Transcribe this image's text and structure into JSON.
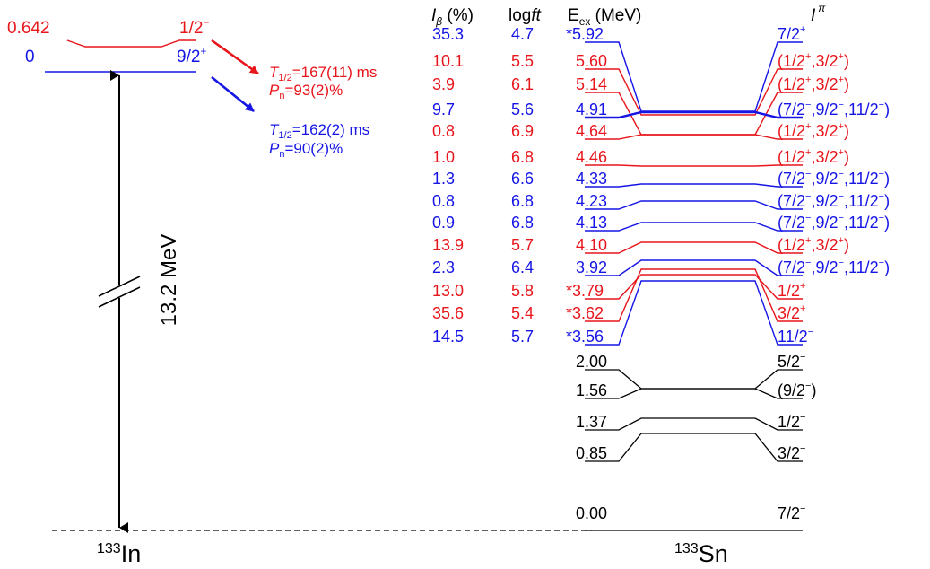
{
  "colors": {
    "red": "#e8151b",
    "blue": "#1515e6",
    "black": "#000000"
  },
  "parent": {
    "nucleus_mass": "133",
    "nucleus_symbol": "In",
    "isomer": {
      "energy": "0.642",
      "spin": "1/2",
      "parity": "−",
      "half_life_label": "T",
      "half_life_sub": "1/2",
      "half_life_value": "=167(11) ms",
      "pn_label": "P",
      "pn_sub": "n",
      "pn_value": "=93(2)%"
    },
    "ground": {
      "energy": "0",
      "spin": "9/2",
      "parity": "+",
      "half_life_label": "T",
      "half_life_sub": "1/2",
      "half_life_value": "=162(2) ms",
      "pn_label": "P",
      "pn_sub": "n",
      "pn_value": "=90(2)%"
    },
    "q_value": "13.2 MeV"
  },
  "daughter": {
    "nucleus_mass": "133",
    "nucleus_symbol": "Sn"
  },
  "headers": {
    "ib_label": "I",
    "ib_sub": "β",
    "ib_unit": " (%)",
    "logft_prefix": "log",
    "logft_italic": "ft",
    "eex_label": "E",
    "eex_sub": "ex",
    "eex_unit": " (MeV)",
    "jpi_label": "I",
    "jpi_sup": "π"
  },
  "upper_levels": [
    {
      "ib": "35.3",
      "logft": "4.7",
      "energy": "*5.92",
      "color": "blue",
      "spin": [
        [
          "7/2",
          "+"
        ]
      ],
      "paren": false
    },
    {
      "ib": "10.1",
      "logft": "5.5",
      "energy": "5.60",
      "color": "red",
      "spin": [
        [
          "1/2",
          "+"
        ],
        [
          "3/2",
          "+"
        ]
      ],
      "paren": true
    },
    {
      "ib": "3.9",
      "logft": "6.1",
      "energy": "5.14",
      "color": "red",
      "spin": [
        [
          "1/2",
          "+"
        ],
        [
          "3/2",
          "+"
        ]
      ],
      "paren": true
    },
    {
      "ib": "9.7",
      "logft": "5.6",
      "energy": "4.91",
      "color": "blue",
      "spin": [
        [
          "7/2",
          "−"
        ],
        [
          "9/2",
          "−"
        ],
        [
          "11/2",
          "−"
        ]
      ],
      "paren": true
    },
    {
      "ib": "0.8",
      "logft": "6.9",
      "energy": "4.64",
      "color": "red",
      "spin": [
        [
          "1/2",
          "+"
        ],
        [
          "3/2",
          "+"
        ]
      ],
      "paren": true
    },
    {
      "ib": "1.0",
      "logft": "6.8",
      "energy": "4.46",
      "color": "red",
      "spin": [
        [
          "1/2",
          "+"
        ],
        [
          "3/2",
          "+"
        ]
      ],
      "paren": true
    },
    {
      "ib": "1.3",
      "logft": "6.6",
      "energy": "4.33",
      "color": "blue",
      "spin": [
        [
          "7/2",
          "−"
        ],
        [
          "9/2",
          "−"
        ],
        [
          "11/2",
          "−"
        ]
      ],
      "paren": true
    },
    {
      "ib": "0.8",
      "logft": "6.8",
      "energy": "4.23",
      "color": "blue",
      "spin": [
        [
          "7/2",
          "−"
        ],
        [
          "9/2",
          "−"
        ],
        [
          "11/2",
          "−"
        ]
      ],
      "paren": true
    },
    {
      "ib": "0.9",
      "logft": "6.8",
      "energy": "4.13",
      "color": "blue",
      "spin": [
        [
          "7/2",
          "−"
        ],
        [
          "9/2",
          "−"
        ],
        [
          "11/2",
          "−"
        ]
      ],
      "paren": true
    },
    {
      "ib": "13.9",
      "logft": "5.7",
      "energy": "4.10",
      "color": "red",
      "spin": [
        [
          "1/2",
          "+"
        ],
        [
          "3/2",
          "+"
        ]
      ],
      "paren": true
    },
    {
      "ib": "2.3",
      "logft": "6.4",
      "energy": "3.92",
      "color": "blue",
      "spin": [
        [
          "7/2",
          "−"
        ],
        [
          "9/2",
          "−"
        ],
        [
          "11/2",
          "−"
        ]
      ],
      "paren": true
    },
    {
      "ib": "13.0",
      "logft": "5.8",
      "energy": "*3.79",
      "color": "red",
      "spin": [
        [
          "1/2",
          "+"
        ]
      ],
      "paren": false
    },
    {
      "ib": "35.6",
      "logft": "5.4",
      "energy": "*3.62",
      "color": "red",
      "spin": [
        [
          "3/2",
          "+"
        ]
      ],
      "paren": false
    },
    {
      "ib": "14.5",
      "logft": "5.7",
      "energy": "*3.56",
      "color": "blue",
      "spin": [
        [
          "11/2",
          "−"
        ]
      ],
      "paren": false
    }
  ],
  "lower_levels": [
    {
      "energy": "2.00",
      "spin": [
        [
          "5/2",
          "−"
        ]
      ],
      "paren": false
    },
    {
      "energy": "1.56",
      "spin": [
        [
          "9/2",
          "−"
        ]
      ],
      "paren": true
    },
    {
      "energy": "1.37",
      "spin": [
        [
          "1/2",
          "−"
        ]
      ],
      "paren": false
    },
    {
      "energy": "0.85",
      "spin": [
        [
          "3/2",
          "−"
        ]
      ],
      "paren": false
    },
    {
      "energy": "0.00",
      "spin": [
        [
          "7/2",
          "−"
        ]
      ],
      "paren": false
    }
  ]
}
